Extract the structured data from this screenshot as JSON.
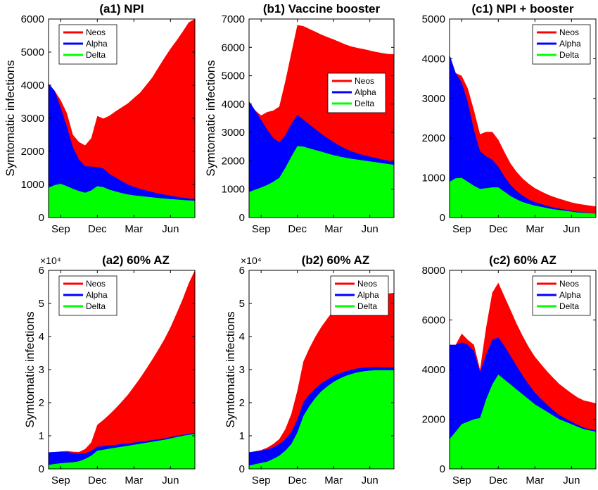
{
  "chart_data": [
    {
      "id": "a1",
      "type": "area",
      "title": "(a1) NPI",
      "ylabel": "Symtomatic infections",
      "ylim": [
        0,
        6000
      ],
      "yticks": [
        0,
        1000,
        2000,
        3000,
        4000,
        5000,
        6000
      ],
      "ytick_labels": [
        "0",
        "1000",
        "2000",
        "3000",
        "4000",
        "5000",
        "6000"
      ],
      "y_multiplier": "",
      "xlim": [
        0,
        12
      ],
      "xticks": [
        1,
        4,
        7,
        10
      ],
      "xtick_labels": [
        "Sep",
        "Dec",
        "Mar",
        "Jun"
      ],
      "legend": [
        "Neos",
        "Alpha",
        "Delta"
      ],
      "legend_position": "top-left",
      "colors": {
        "Neos": "#ff0000",
        "Alpha": "#0000ff",
        "Delta": "#00ff00"
      },
      "x": [
        0,
        0.5,
        1,
        1.5,
        2,
        2.5,
        3,
        3.5,
        4,
        4.5,
        5,
        5.5,
        6,
        6.5,
        7,
        7.5,
        8,
        8.5,
        9,
        9.5,
        10,
        10.5,
        11,
        11.5,
        12
      ],
      "series": [
        {
          "name": "Delta",
          "values": [
            900,
            980,
            1020,
            950,
            870,
            800,
            750,
            820,
            950,
            920,
            840,
            790,
            740,
            700,
            670,
            650,
            630,
            610,
            590,
            575,
            560,
            545,
            530,
            520,
            510
          ]
        },
        {
          "name": "Alpha",
          "values": [
            3150,
            2850,
            2300,
            1800,
            1250,
            950,
            800,
            720,
            580,
            560,
            480,
            420,
            360,
            300,
            260,
            220,
            190,
            160,
            140,
            120,
            100,
            85,
            70,
            60,
            50
          ]
        },
        {
          "name": "Neos",
          "values": [
            0,
            0,
            230,
            410,
            380,
            530,
            630,
            860,
            1540,
            1510,
            1760,
            2000,
            2230,
            2450,
            2680,
            2900,
            3180,
            3460,
            3800,
            4130,
            4440,
            4720,
            5020,
            5320,
            5640
          ]
        }
      ]
    },
    {
      "id": "b1",
      "type": "area",
      "title": "(b1) Vaccine booster",
      "ylabel": "Symtomatic infections",
      "ylim": [
        0,
        7000
      ],
      "yticks": [
        0,
        1000,
        2000,
        3000,
        4000,
        5000,
        6000,
        7000
      ],
      "ytick_labels": [
        "0",
        "1000",
        "2000",
        "3000",
        "4000",
        "5000",
        "6000",
        "7000"
      ],
      "y_multiplier": "",
      "xlim": [
        0,
        12
      ],
      "xticks": [
        1,
        4,
        7,
        10
      ],
      "xtick_labels": [
        "Sep",
        "Dec",
        "Mar",
        "Jun"
      ],
      "legend": [
        "Neos",
        "Alpha",
        "Delta"
      ],
      "legend_position": "right",
      "colors": {
        "Neos": "#ff0000",
        "Alpha": "#0000ff",
        "Delta": "#00ff00"
      },
      "x": [
        0,
        0.5,
        1,
        1.5,
        2,
        2.5,
        3,
        3.5,
        4,
        4.5,
        5,
        5.5,
        6,
        6.5,
        7,
        7.5,
        8,
        8.5,
        9,
        9.5,
        10,
        10.5,
        11,
        11.5,
        12
      ],
      "series": [
        {
          "name": "Delta",
          "values": [
            900,
            980,
            1060,
            1150,
            1260,
            1400,
            1750,
            2150,
            2520,
            2500,
            2440,
            2380,
            2320,
            2260,
            2200,
            2150,
            2110,
            2070,
            2040,
            2010,
            1980,
            1950,
            1920,
            1890,
            1860
          ]
        },
        {
          "name": "Alpha",
          "values": [
            3200,
            2800,
            2380,
            1950,
            1550,
            1250,
            1150,
            1150,
            1100,
            950,
            840,
            730,
            630,
            540,
            460,
            380,
            310,
            260,
            220,
            190,
            170,
            150,
            130,
            120,
            110
          ]
        },
        {
          "name": "Neos",
          "values": [
            0,
            0,
            160,
            620,
            960,
            1260,
            1900,
            2500,
            3170,
            3300,
            3370,
            3440,
            3500,
            3560,
            3620,
            3660,
            3680,
            3700,
            3720,
            3740,
            3740,
            3740,
            3750,
            3760,
            3790
          ]
        }
      ]
    },
    {
      "id": "c1",
      "type": "area",
      "title": "(c1) NPI + booster",
      "ylabel": "",
      "ylim": [
        0,
        5000
      ],
      "yticks": [
        0,
        1000,
        2000,
        3000,
        4000,
        5000
      ],
      "ytick_labels": [
        "0",
        "1000",
        "2000",
        "3000",
        "4000",
        "5000"
      ],
      "y_multiplier": "",
      "xlim": [
        0,
        12
      ],
      "xticks": [
        1,
        4,
        7,
        10
      ],
      "xtick_labels": [
        "Sep",
        "Dec",
        "Mar",
        "Jun"
      ],
      "legend": [
        "Neos",
        "Alpha",
        "Delta"
      ],
      "legend_position": "top-right",
      "colors": {
        "Neos": "#ff0000",
        "Alpha": "#0000ff",
        "Delta": "#00ff00"
      },
      "x": [
        0,
        0.5,
        1,
        1.5,
        2,
        2.5,
        3,
        3.5,
        4,
        4.5,
        5,
        5.5,
        6,
        6.5,
        7,
        7.5,
        8,
        8.5,
        9,
        9.5,
        10,
        10.5,
        11,
        11.5,
        12
      ],
      "series": [
        {
          "name": "Delta",
          "values": [
            900,
            990,
            1000,
            900,
            800,
            720,
            740,
            760,
            760,
            650,
            540,
            460,
            390,
            340,
            300,
            270,
            240,
            210,
            190,
            170,
            150,
            130,
            120,
            110,
            100
          ]
        },
        {
          "name": "Alpha",
          "values": [
            3200,
            2650,
            2400,
            2000,
            1400,
            950,
            800,
            700,
            520,
            380,
            280,
            210,
            160,
            120,
            90,
            70,
            55,
            45,
            35,
            28,
            22,
            18,
            14,
            11,
            9
          ]
        },
        {
          "name": "Neos",
          "values": [
            0,
            0,
            170,
            350,
            500,
            430,
            620,
            700,
            680,
            620,
            540,
            480,
            430,
            390,
            350,
            320,
            290,
            270,
            250,
            230,
            210,
            200,
            190,
            180,
            170
          ]
        }
      ]
    },
    {
      "id": "a2",
      "type": "area",
      "title": "(a2) 60% AZ",
      "ylabel": "Symtomatic infections",
      "ylim": [
        0,
        60000
      ],
      "yticks": [
        0,
        10000,
        20000,
        30000,
        40000,
        50000,
        60000
      ],
      "ytick_labels": [
        "0",
        "1",
        "2",
        "3",
        "4",
        "5",
        "6"
      ],
      "y_multiplier": "×10⁴",
      "xlim": [
        0,
        12
      ],
      "xticks": [
        1,
        4,
        7,
        10
      ],
      "xtick_labels": [
        "Sep",
        "Dec",
        "Mar",
        "Jun"
      ],
      "legend": [
        "Neos",
        "Alpha",
        "Delta"
      ],
      "legend_position": "top-left",
      "colors": {
        "Neos": "#ff0000",
        "Alpha": "#0000ff",
        "Delta": "#00ff00"
      },
      "x": [
        0,
        0.5,
        1,
        1.5,
        2,
        2.5,
        3,
        3.5,
        4,
        4.5,
        5,
        5.5,
        6,
        6.5,
        7,
        7.5,
        8,
        8.5,
        9,
        9.5,
        10,
        10.5,
        11,
        11.5,
        12
      ],
      "series": [
        {
          "name": "Delta",
          "values": [
            1200,
            1500,
            1700,
            1900,
            2000,
            2300,
            3000,
            4000,
            5500,
            5800,
            6100,
            6400,
            6700,
            7000,
            7300,
            7600,
            7900,
            8200,
            8500,
            8800,
            9200,
            9600,
            10000,
            10300,
            10500
          ]
        },
        {
          "name": "Alpha",
          "values": [
            3800,
            3600,
            3400,
            3200,
            2800,
            2200,
            1700,
            1400,
            1200,
            1100,
            1000,
            900,
            800,
            700,
            650,
            600,
            550,
            500,
            450,
            420,
            380,
            350,
            320,
            300,
            280
          ]
        },
        {
          "name": "Neos",
          "values": [
            0,
            0,
            200,
            300,
            400,
            600,
            1300,
            2600,
            6600,
            7900,
            9400,
            11000,
            12800,
            14700,
            16900,
            19200,
            21700,
            24300,
            27100,
            30000,
            33200,
            37000,
            41000,
            45500,
            50000
          ]
        }
      ]
    },
    {
      "id": "b2",
      "type": "area",
      "title": "(b2) 60% AZ",
      "ylabel": "Symtomatic infections",
      "ylim": [
        0,
        60000
      ],
      "yticks": [
        0,
        10000,
        20000,
        30000,
        40000,
        50000,
        60000
      ],
      "ytick_labels": [
        "0",
        "1",
        "2",
        "3",
        "4",
        "5",
        "6"
      ],
      "y_multiplier": "×10⁴",
      "xlim": [
        0,
        12
      ],
      "xticks": [
        1,
        4,
        7,
        10
      ],
      "xtick_labels": [
        "Sep",
        "Dec",
        "Mar",
        "Jun"
      ],
      "legend": [
        "Neos",
        "Alpha",
        "Delta"
      ],
      "legend_position": "top-right",
      "colors": {
        "Neos": "#ff0000",
        "Alpha": "#0000ff",
        "Delta": "#00ff00"
      },
      "x": [
        0,
        0.5,
        1,
        1.5,
        2,
        2.5,
        3,
        3.5,
        4,
        4.5,
        5,
        5.5,
        6,
        6.5,
        7,
        7.5,
        8,
        8.5,
        9,
        9.5,
        10,
        10.5,
        11,
        11.5,
        12
      ],
      "series": [
        {
          "name": "Delta",
          "values": [
            1000,
            1400,
            1800,
            2200,
            3000,
            4000,
            5500,
            7500,
            11000,
            16000,
            19000,
            21500,
            23500,
            25000,
            26300,
            27300,
            28100,
            28700,
            29200,
            29500,
            29700,
            29800,
            29800,
            29800,
            29800
          ]
        },
        {
          "name": "Alpha",
          "values": [
            4000,
            3900,
            3700,
            3700,
            3500,
            3500,
            3500,
            3600,
            4000,
            4200,
            3500,
            2800,
            2400,
            2000,
            1800,
            1600,
            1400,
            1300,
            1200,
            1100,
            1050,
            1000,
            950,
            900,
            900
          ]
        },
        {
          "name": "Neos",
          "values": [
            0,
            0,
            200,
            500,
            1000,
            1500,
            3000,
            5500,
            8700,
            12300,
            14000,
            15700,
            17100,
            18500,
            19900,
            20900,
            21700,
            22300,
            22100,
            22000,
            22000,
            22000,
            22100,
            22300,
            22500
          ]
        }
      ]
    },
    {
      "id": "c2",
      "type": "area",
      "title": "(c2) 60% AZ",
      "ylabel": "",
      "ylim": [
        0,
        8000
      ],
      "yticks": [
        0,
        2000,
        4000,
        6000,
        8000
      ],
      "ytick_labels": [
        "0",
        "2000",
        "4000",
        "6000",
        "8000"
      ],
      "y_multiplier": "",
      "xlim": [
        0,
        12
      ],
      "xticks": [
        1,
        4,
        7,
        10
      ],
      "xtick_labels": [
        "Sep",
        "Dec",
        "Mar",
        "Jun"
      ],
      "legend": [
        "Neos",
        "Alpha",
        "Delta"
      ],
      "legend_position": "top-right",
      "colors": {
        "Neos": "#ff0000",
        "Alpha": "#0000ff",
        "Delta": "#00ff00"
      },
      "x": [
        0,
        0.5,
        1,
        1.5,
        2,
        2.5,
        3,
        3.5,
        4,
        4.5,
        5,
        5.5,
        6,
        6.5,
        7,
        7.5,
        8,
        8.5,
        9,
        9.5,
        10,
        10.5,
        11,
        11.5,
        12
      ],
      "series": [
        {
          "name": "Delta",
          "values": [
            1200,
            1500,
            1800,
            1900,
            2000,
            2050,
            2800,
            3400,
            3800,
            3600,
            3400,
            3200,
            3000,
            2800,
            2600,
            2450,
            2300,
            2150,
            2000,
            1900,
            1800,
            1700,
            1600,
            1550,
            1500
          ]
        },
        {
          "name": "Alpha",
          "values": [
            3800,
            3500,
            3300,
            3100,
            2750,
            1850,
            1800,
            1800,
            1500,
            1350,
            1150,
            950,
            750,
            600,
            470,
            370,
            280,
            220,
            170,
            130,
            100,
            80,
            60,
            50,
            40
          ]
        },
        {
          "name": "Neos",
          "values": [
            0,
            0,
            350,
            200,
            250,
            100,
            1100,
            1900,
            2200,
            2000,
            1850,
            1700,
            1600,
            1500,
            1450,
            1400,
            1350,
            1300,
            1250,
            1200,
            1150,
            1100,
            1100,
            1100,
            1100
          ]
        }
      ]
    }
  ]
}
